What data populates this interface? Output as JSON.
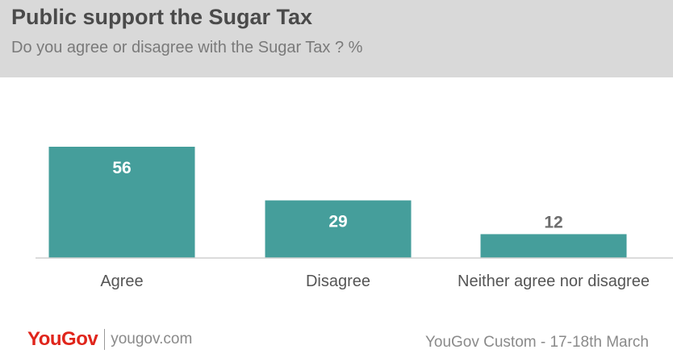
{
  "header": {
    "title": "Public support the Sugar Tax",
    "subtitle": "Do you agree or disagree with the Sugar Tax ? %"
  },
  "chart_data": {
    "type": "bar",
    "categories": [
      "Agree",
      "Disagree",
      "Neither agree nor disagree"
    ],
    "values": [
      56,
      29,
      12
    ],
    "data_labels": [
      "56",
      "29",
      "12"
    ],
    "title": "Public support the Sugar Tax",
    "subtitle": "Do you agree or disagree with the Sugar Tax ? %",
    "xlabel": "",
    "ylabel": "",
    "ylim": [
      0,
      56
    ],
    "grid": false,
    "legend": "none",
    "bar_color": "#459e9b",
    "label_inside_color": "#ffffff",
    "label_outside_color": "#6d6d6d"
  },
  "footer": {
    "brand": "YouGov",
    "site": "yougov.com",
    "source": "YouGov Custom - 17-18th March"
  },
  "colors": {
    "header_bg": "#d9d9d9",
    "brand_red": "#e0251b"
  }
}
